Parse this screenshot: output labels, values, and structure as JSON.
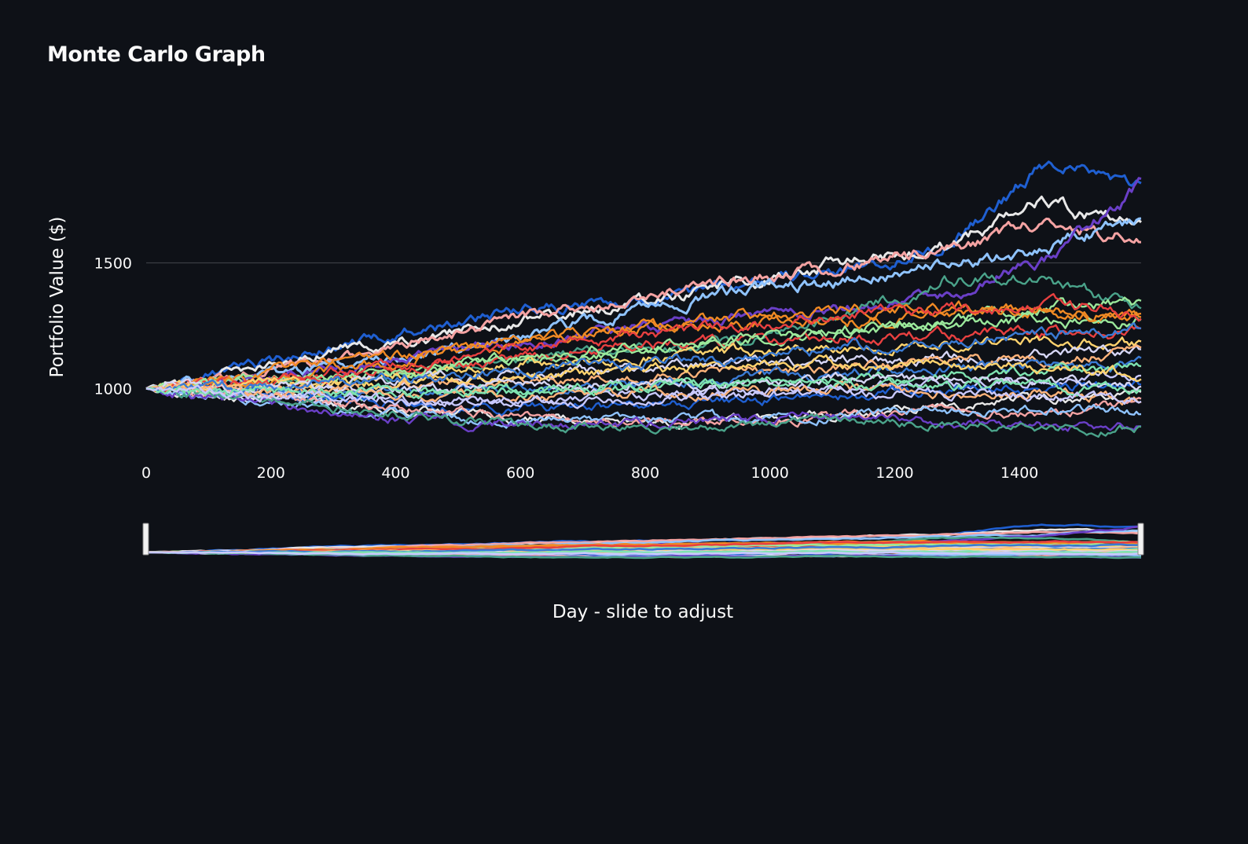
{
  "title": "Monte Carlo Graph",
  "chart_data": {
    "type": "line",
    "title": "Monte Carlo Graph",
    "xlabel": "Day - slide to adjust",
    "ylabel": "Portfolio Value ($)",
    "x_range": [
      0,
      1595
    ],
    "y_range": [
      820,
      1930
    ],
    "x_ticks": [
      "0",
      "200",
      "400",
      "600",
      "800",
      "1000",
      "1200",
      "1400"
    ],
    "y_ticks": [
      "1000",
      "1500"
    ],
    "y_tick_values": [
      1000,
      1500
    ],
    "x_tick_values": [
      0,
      200,
      400,
      600,
      800,
      1000,
      1200,
      1400
    ],
    "gridlines": [
      1500
    ],
    "start_value": 1000,
    "num_days": 1595,
    "range_slider": {
      "start_day": 0,
      "end_day": 1595
    },
    "colors": [
      "#1f5fd1",
      "#e8e8e8",
      "#f5a3a3",
      "#8fc3ff",
      "#6a3fc7",
      "#4aa38a",
      "#9be89b",
      "#f08a24",
      "#e84040",
      "#ffd36e",
      "#d6d6f5",
      "#ffb37a",
      "#3a7bd5",
      "#7ee3b0",
      "#c9c9ff"
    ],
    "series": [
      {
        "values": [
          1000,
          1080,
          1180,
          1250,
          1330,
          1360,
          1400,
          1480,
          1560,
          1890,
          1820
        ]
      },
      {
        "values": [
          1000,
          1070,
          1160,
          1220,
          1290,
          1350,
          1420,
          1500,
          1560,
          1740,
          1650
        ]
      },
      {
        "values": [
          1000,
          1050,
          1120,
          1210,
          1300,
          1360,
          1430,
          1480,
          1550,
          1660,
          1600
        ]
      },
      {
        "values": [
          1000,
          1040,
          1090,
          1150,
          1230,
          1310,
          1390,
          1430,
          1480,
          1560,
          1680
        ]
      },
      {
        "values": [
          1000,
          1040,
          1080,
          1150,
          1200,
          1240,
          1280,
          1310,
          1370,
          1500,
          1800
        ]
      },
      {
        "values": [
          1000,
          1010,
          1030,
          1070,
          1120,
          1150,
          1190,
          1280,
          1440,
          1440,
          1320
        ]
      },
      {
        "values": [
          1000,
          1020,
          1050,
          1080,
          1120,
          1160,
          1190,
          1230,
          1280,
          1320,
          1340
        ]
      },
      {
        "values": [
          1000,
          1030,
          1080,
          1140,
          1200,
          1240,
          1260,
          1270,
          1290,
          1310,
          1290
        ]
      },
      {
        "values": [
          1000,
          1020,
          1060,
          1100,
          1140,
          1180,
          1190,
          1200,
          1210,
          1220,
          1230
        ]
      },
      {
        "values": [
          1000,
          1010,
          1040,
          1070,
          1100,
          1120,
          1140,
          1160,
          1170,
          1190,
          1180
        ]
      },
      {
        "values": [
          1000,
          1000,
          1020,
          1040,
          1060,
          1080,
          1100,
          1110,
          1120,
          1140,
          1150
        ]
      },
      {
        "values": [
          1000,
          990,
          1000,
          1020,
          1030,
          1050,
          1070,
          1090,
          1110,
          1120,
          1140
        ]
      },
      {
        "values": [
          1000,
          990,
          980,
          990,
          1000,
          1010,
          1040,
          1060,
          1080,
          1090,
          1100
        ]
      },
      {
        "values": [
          1000,
          980,
          970,
          980,
          990,
          1000,
          1010,
          1030,
          1050,
          1070,
          1080
        ]
      },
      {
        "values": [
          1000,
          970,
          960,
          950,
          960,
          980,
          990,
          1000,
          1020,
          1030,
          1050
        ]
      },
      {
        "values": [
          1000,
          980,
          950,
          930,
          920,
          930,
          950,
          970,
          990,
          1000,
          1010
        ]
      },
      {
        "values": [
          1000,
          960,
          930,
          900,
          880,
          870,
          870,
          900,
          930,
          960,
          970
        ]
      },
      {
        "values": [
          1000,
          970,
          940,
          910,
          880,
          860,
          870,
          890,
          900,
          900,
          940
        ]
      },
      {
        "values": [
          1000,
          960,
          920,
          880,
          870,
          870,
          880,
          900,
          910,
          920,
          900
        ]
      },
      {
        "values": [
          1000,
          950,
          900,
          870,
          860,
          860,
          880,
          900,
          870,
          850,
          850
        ]
      },
      {
        "values": [
          1000,
          970,
          920,
          880,
          850,
          840,
          850,
          870,
          860,
          850,
          840
        ]
      },
      {
        "values": [
          1000,
          1020,
          1050,
          1090,
          1130,
          1170,
          1200,
          1220,
          1250,
          1260,
          1270
        ]
      },
      {
        "values": [
          1000,
          1050,
          1110,
          1150,
          1200,
          1250,
          1280,
          1320,
          1330,
          1310,
          1300
        ]
      },
      {
        "values": [
          1000,
          1030,
          1070,
          1110,
          1160,
          1210,
          1250,
          1290,
          1310,
          1320,
          1310
        ]
      },
      {
        "values": [
          1000,
          1010,
          1020,
          1030,
          1050,
          1070,
          1090,
          1100,
          1090,
          1080,
          1060
        ]
      },
      {
        "values": [
          1000,
          1000,
          1000,
          1000,
          1010,
          1020,
          1030,
          1040,
          1040,
          1030,
          1020
        ]
      },
      {
        "values": [
          1000,
          990,
          980,
          970,
          970,
          980,
          990,
          1000,
          990,
          980,
          960
        ]
      },
      {
        "values": [
          1000,
          1010,
          1030,
          1050,
          1080,
          1100,
          1130,
          1160,
          1190,
          1210,
          1230
        ]
      },
      {
        "values": [
          1000,
          990,
          990,
          990,
          1000,
          1010,
          1020,
          1020,
          1010,
          1000,
          990
        ]
      },
      {
        "values": [
          1000,
          980,
          960,
          950,
          950,
          960,
          970,
          980,
          980,
          970,
          960
        ]
      }
    ]
  }
}
